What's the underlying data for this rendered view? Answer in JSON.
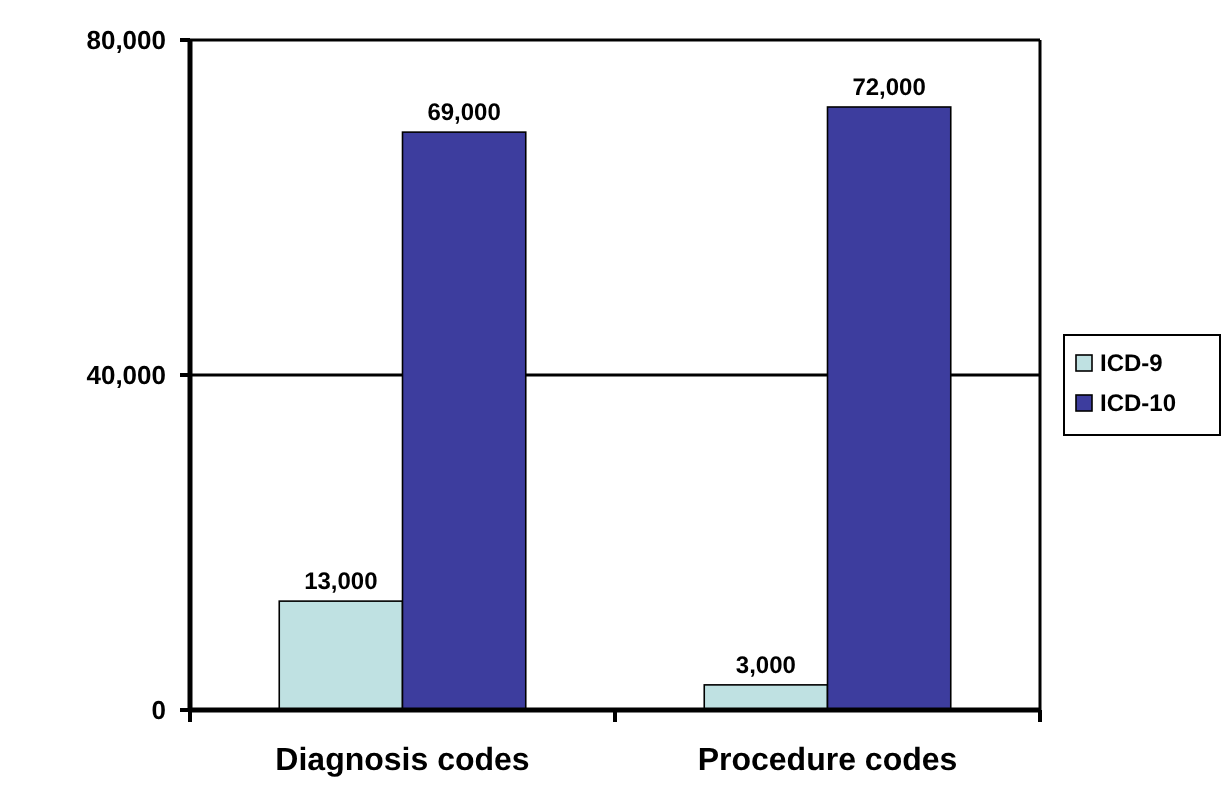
{
  "chart_data": {
    "type": "bar",
    "categories": [
      "Diagnosis codes",
      "Procedure codes"
    ],
    "series": [
      {
        "name": "ICD-9",
        "color": "#bfe1e2",
        "values": [
          13000,
          3000
        ],
        "value_labels": [
          "13,000",
          "3,000"
        ]
      },
      {
        "name": "ICD-10",
        "color": "#3d3d9e",
        "values": [
          69000,
          72000
        ],
        "value_labels": [
          "69,000",
          "72,000"
        ]
      }
    ],
    "ylim": [
      0,
      80000
    ],
    "yticks": [
      {
        "value": 0,
        "label": "0"
      },
      {
        "value": 40000,
        "label": "40,000"
      },
      {
        "value": 80000,
        "label": "80,000"
      }
    ],
    "grid": "y",
    "legend": "right"
  }
}
